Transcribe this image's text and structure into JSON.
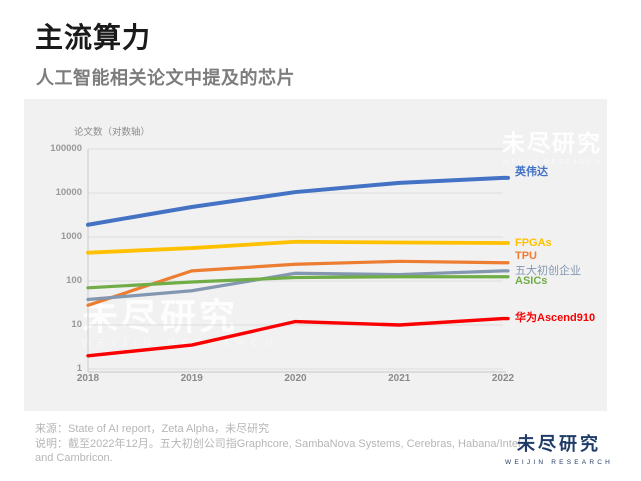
{
  "header": {
    "title": "主流算力",
    "subtitle": "人工智能相关论文中提及的芯片"
  },
  "chart_data": {
    "type": "line",
    "axis_title": "论文数（对数轴）",
    "y_scale": "log",
    "ylim": [
      1,
      100000
    ],
    "y_ticks": [
      "100000",
      "10000",
      "1000",
      "100",
      "10",
      "1"
    ],
    "x": [
      "2018",
      "2019",
      "2020",
      "2021",
      "2022"
    ],
    "grid": true,
    "legend_position": "right-of-line-ends",
    "series": [
      {
        "name": "英伟达",
        "color": "#4472C4",
        "values": [
          1900,
          4800,
          10500,
          17000,
          22000
        ]
      },
      {
        "name": "FPGAs",
        "color": "#FFC000",
        "values": [
          440,
          560,
          780,
          750,
          730
        ]
      },
      {
        "name": "TPU",
        "color": "#ED7D31",
        "values": [
          28,
          170,
          240,
          280,
          260
        ]
      },
      {
        "name": "五大初创企业",
        "color": "#8497B0",
        "values": [
          38,
          60,
          150,
          140,
          170
        ]
      },
      {
        "name": "ASICs",
        "color": "#70AD47",
        "values": [
          70,
          95,
          120,
          125,
          125
        ]
      },
      {
        "name": "华为Ascend910",
        "color": "#FB0000",
        "values": [
          2,
          3.5,
          12,
          10,
          14
        ]
      }
    ]
  },
  "watermark": {
    "cn": "未尽研究",
    "en": "WEIJIN RESEARCH"
  },
  "footer": {
    "source": "来源：State of AI report，Zeta Alpha，未尽研究",
    "note": "说明：截至2022年12月。五大初创公司指Graphcore, SambaNova Systems, Cerebras, Habana/Intel, and Cambricon."
  },
  "logo": {
    "cn": "未尽研究",
    "en": "WEIJIN RESEARCH"
  }
}
